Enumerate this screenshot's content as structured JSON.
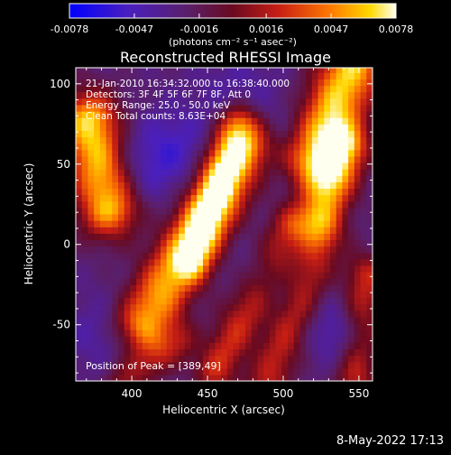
{
  "chart_data": {
    "type": "heatmap",
    "title": "Reconstructed RHESSI Image",
    "xlabel": "Heliocentric X (arcsec)",
    "ylabel": "Heliocentric Y (arcsec)",
    "xlim": [
      363,
      559
    ],
    "ylim": [
      -85,
      110
    ],
    "x_ticks": [
      400,
      450,
      500,
      550
    ],
    "y_ticks": [
      -50,
      0,
      50,
      100
    ],
    "colorbar": {
      "min": -0.0078,
      "max": 0.0078,
      "ticks": [
        "-0.0078",
        "-0.0047",
        "-0.0016",
        "0.0016",
        "0.0047",
        "0.0078"
      ],
      "tick_values": [
        -0.0078,
        -0.0047,
        -0.0016,
        0.0016,
        0.0047,
        0.0078
      ],
      "label": "(photons cm⁻² s⁻¹ asec⁻²)",
      "colormap": "blue-purple-red-yellow-white"
    },
    "info_lines": [
      "21-Jan-2010 16:34:32.000 to 16:38:40.000",
      "Detectors: 3F 4F 5F 6F 7F 8F, Att 0",
      "Energy Range: 25.0 - 50.0 keV",
      "Clean     Total counts: 8.63E+04"
    ],
    "peak_label": "Position of Peak = [389,49]",
    "peak": [
      389,
      49
    ]
  },
  "footer": {
    "date_stamp": "8-May-2022 17:13"
  }
}
